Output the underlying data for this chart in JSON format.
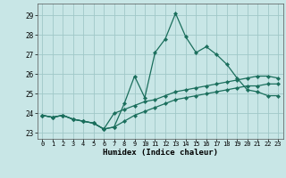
{
  "xlabel": "Humidex (Indice chaleur)",
  "xlim": [
    -0.5,
    23.5
  ],
  "ylim": [
    22.7,
    29.6
  ],
  "yticks": [
    23,
    24,
    25,
    26,
    27,
    28,
    29
  ],
  "xticks": [
    0,
    1,
    2,
    3,
    4,
    5,
    6,
    7,
    8,
    9,
    10,
    11,
    12,
    13,
    14,
    15,
    16,
    17,
    18,
    19,
    20,
    21,
    22,
    23
  ],
  "background_color": "#c8e6e6",
  "grid_color": "#a0c8c8",
  "line_color": "#1a6e5c",
  "series": [
    [
      23.9,
      23.8,
      23.9,
      23.7,
      23.6,
      23.5,
      23.2,
      23.3,
      24.5,
      25.9,
      24.8,
      27.1,
      27.8,
      29.1,
      27.9,
      27.1,
      27.4,
      27.0,
      26.5,
      25.8,
      25.2,
      25.1,
      24.9,
      24.9
    ],
    [
      23.9,
      23.8,
      23.9,
      23.7,
      23.6,
      23.5,
      23.2,
      24.0,
      24.2,
      24.4,
      24.6,
      24.7,
      24.9,
      25.1,
      25.2,
      25.3,
      25.4,
      25.5,
      25.6,
      25.7,
      25.8,
      25.9,
      25.9,
      25.8
    ],
    [
      23.9,
      23.8,
      23.9,
      23.7,
      23.6,
      23.5,
      23.2,
      23.3,
      23.6,
      23.9,
      24.1,
      24.3,
      24.5,
      24.7,
      24.8,
      24.9,
      25.0,
      25.1,
      25.2,
      25.3,
      25.4,
      25.4,
      25.5,
      25.5
    ]
  ]
}
